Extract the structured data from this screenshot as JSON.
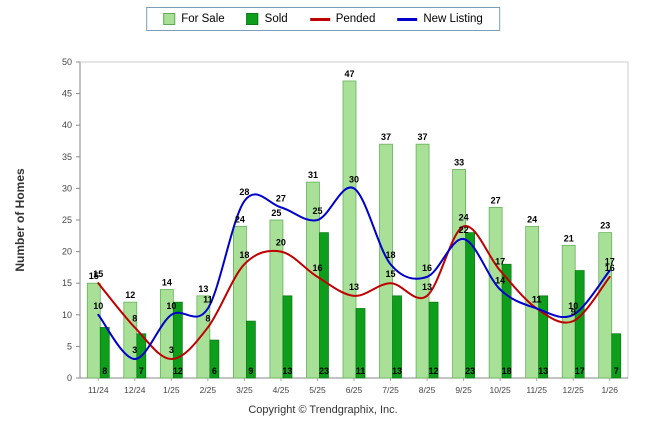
{
  "chart_data": {
    "type": "bar",
    "title": "",
    "ylabel": "Number of Homes",
    "xlabel": "",
    "ylim": [
      0,
      50
    ],
    "ytick_step": 5,
    "grid": false,
    "legend_position": "top-center",
    "categories": [
      "11/24",
      "12/24",
      "1/25",
      "2/25",
      "3/25",
      "4/25",
      "5/25",
      "6/25",
      "7/25",
      "8/25",
      "9/25",
      "10/25",
      "11/25",
      "12/25",
      "1/26"
    ],
    "series": [
      {
        "name": "For Sale",
        "type": "bar",
        "color": "#a8e098",
        "border": "#5fae55",
        "values": [
          15,
          12,
          14,
          13,
          24,
          25,
          31,
          47,
          37,
          37,
          33,
          27,
          24,
          21,
          23
        ]
      },
      {
        "name": "Sold",
        "type": "bar",
        "color": "#0f9e1c",
        "border": "#0a7a14",
        "values": [
          8,
          7,
          12,
          6,
          9,
          13,
          23,
          11,
          13,
          12,
          23,
          18,
          13,
          17,
          7
        ]
      },
      {
        "name": "Pended",
        "type": "line",
        "color": "#c00000",
        "values": [
          15,
          8,
          3,
          8,
          18,
          20,
          16,
          13,
          15,
          13,
          24,
          17,
          11,
          9,
          16
        ]
      },
      {
        "name": "New Listing",
        "type": "line",
        "color": "#0000cd",
        "values": [
          10,
          3,
          10,
          11,
          28,
          27,
          25,
          30,
          18,
          16,
          22,
          14,
          11,
          10,
          17
        ]
      }
    ]
  },
  "footer": {
    "copyright": "Copyright © Trendgraphix, Inc."
  }
}
